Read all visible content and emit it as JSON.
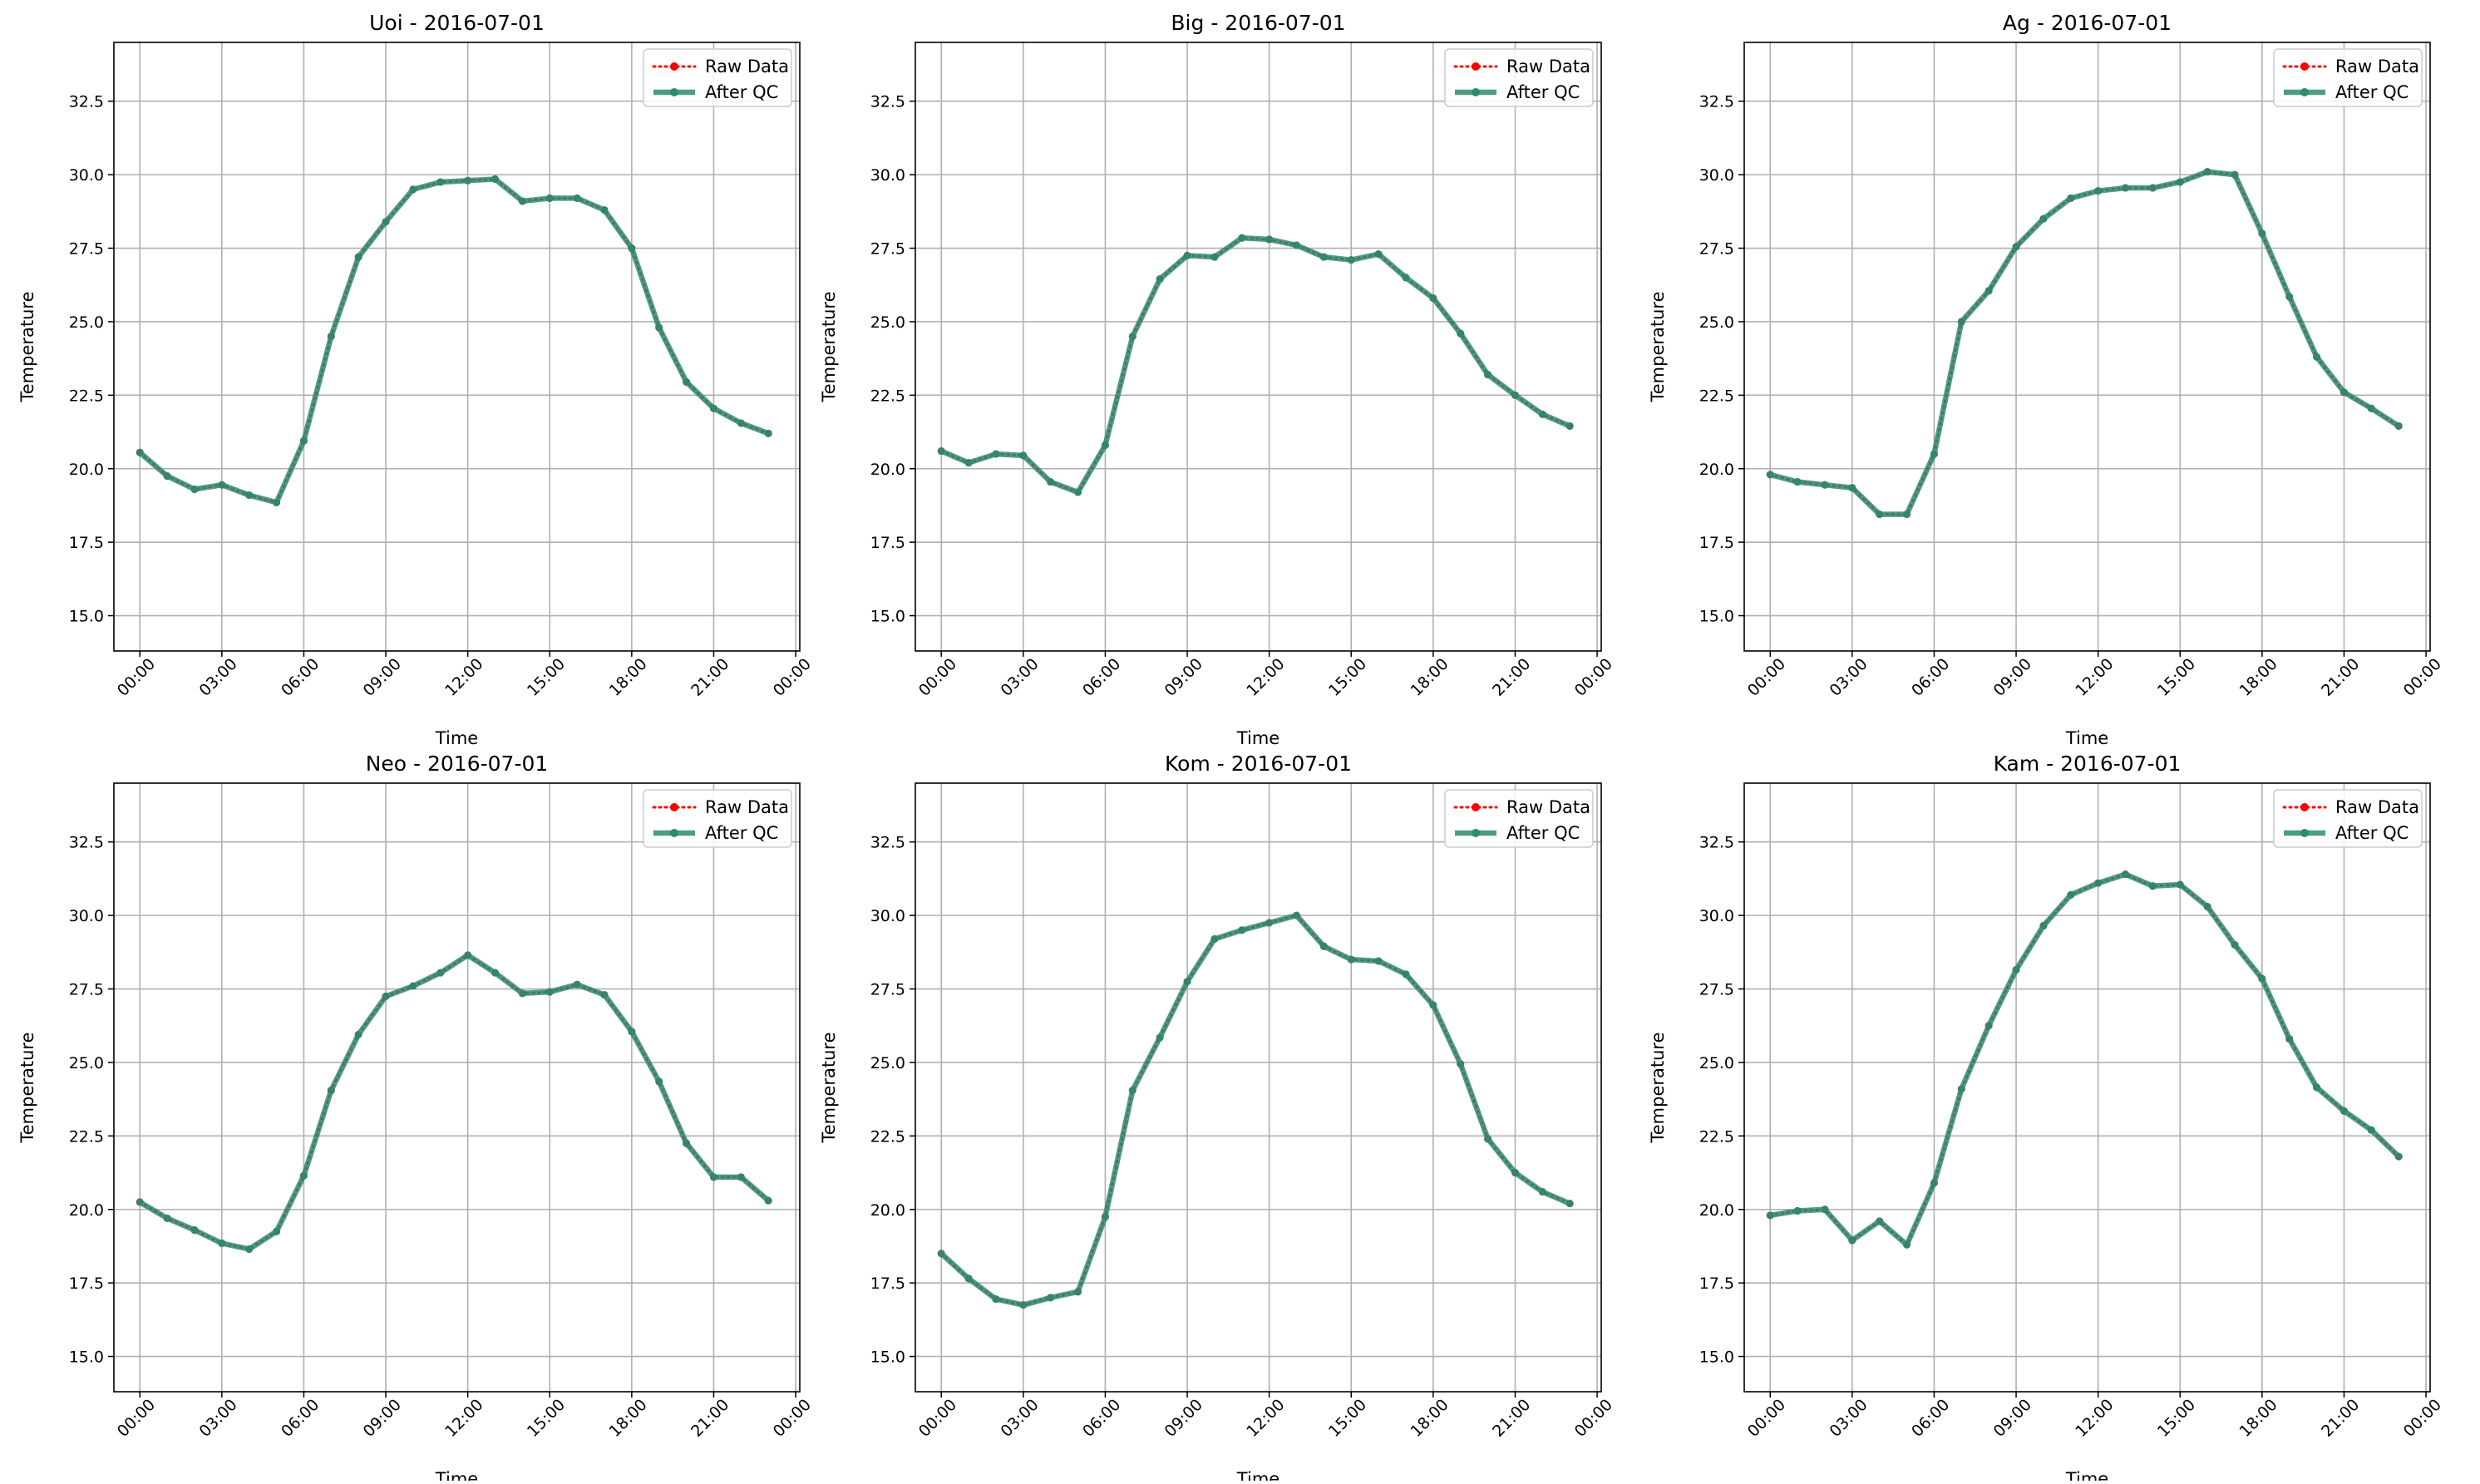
{
  "chart_data": [
    {
      "type": "line",
      "title": "Uoi - 2016-07-01",
      "xlabel": "Time",
      "ylabel": "Temperature",
      "x": [
        "00:00",
        "01:00",
        "02:00",
        "03:00",
        "04:00",
        "05:00",
        "06:00",
        "07:00",
        "08:00",
        "09:00",
        "10:00",
        "11:00",
        "12:00",
        "13:00",
        "14:00",
        "15:00",
        "16:00",
        "17:00",
        "18:00",
        "19:00",
        "20:00",
        "21:00",
        "22:00",
        "23:00"
      ],
      "xticks": [
        "00:00",
        "03:00",
        "06:00",
        "09:00",
        "12:00",
        "15:00",
        "18:00",
        "21:00",
        "00:00"
      ],
      "yticks": [
        "15.0",
        "17.5",
        "20.0",
        "22.5",
        "25.0",
        "27.5",
        "30.0",
        "32.5"
      ],
      "ylim": [
        13.8,
        34.5
      ],
      "xlim_hours": [
        -0.95,
        24.15
      ],
      "grid": true,
      "legend_position": "upper right",
      "series": [
        {
          "name": "Raw Data",
          "color": "#ff0000",
          "style": "dotted",
          "values": [
            20.55,
            19.75,
            19.3,
            19.45,
            19.1,
            18.85,
            20.95,
            24.5,
            27.2,
            28.4,
            29.5,
            29.75,
            29.8,
            29.85,
            29.1,
            29.2,
            29.2,
            28.8,
            27.5,
            24.8,
            22.95,
            22.05,
            21.55,
            21.2
          ]
        },
        {
          "name": "After QC",
          "color": "#2e8b6e",
          "style": "solid",
          "values": [
            20.55,
            19.75,
            19.3,
            19.45,
            19.1,
            18.85,
            20.95,
            24.5,
            27.2,
            28.4,
            29.5,
            29.75,
            29.8,
            29.85,
            29.1,
            29.2,
            29.2,
            28.8,
            27.5,
            24.8,
            22.95,
            22.05,
            21.55,
            21.2
          ]
        }
      ]
    },
    {
      "type": "line",
      "title": "Big - 2016-07-01",
      "xlabel": "Time",
      "ylabel": "Temperature",
      "x": [
        "00:00",
        "01:00",
        "02:00",
        "03:00",
        "04:00",
        "05:00",
        "06:00",
        "07:00",
        "08:00",
        "09:00",
        "10:00",
        "11:00",
        "12:00",
        "13:00",
        "14:00",
        "15:00",
        "16:00",
        "17:00",
        "18:00",
        "19:00",
        "20:00",
        "21:00",
        "22:00",
        "23:00"
      ],
      "xticks": [
        "00:00",
        "03:00",
        "06:00",
        "09:00",
        "12:00",
        "15:00",
        "18:00",
        "21:00",
        "00:00"
      ],
      "yticks": [
        "15.0",
        "17.5",
        "20.0",
        "22.5",
        "25.0",
        "27.5",
        "30.0",
        "32.5"
      ],
      "ylim": [
        13.8,
        34.5
      ],
      "xlim_hours": [
        -0.95,
        24.15
      ],
      "grid": true,
      "legend_position": "upper right",
      "series": [
        {
          "name": "Raw Data",
          "color": "#ff0000",
          "style": "dotted",
          "values": [
            20.6,
            20.2,
            20.5,
            20.45,
            19.55,
            19.2,
            20.8,
            24.5,
            26.45,
            27.25,
            27.2,
            27.85,
            27.8,
            27.6,
            27.2,
            27.1,
            27.3,
            26.5,
            25.8,
            24.6,
            23.2,
            22.5,
            21.85,
            21.45
          ]
        },
        {
          "name": "After QC",
          "color": "#2e8b6e",
          "style": "solid",
          "values": [
            20.6,
            20.2,
            20.5,
            20.45,
            19.55,
            19.2,
            20.8,
            24.5,
            26.45,
            27.25,
            27.2,
            27.85,
            27.8,
            27.6,
            27.2,
            27.1,
            27.3,
            26.5,
            25.8,
            24.6,
            23.2,
            22.5,
            21.85,
            21.45
          ]
        }
      ]
    },
    {
      "type": "line",
      "title": "Ag - 2016-07-01",
      "xlabel": "Time",
      "ylabel": "Temperature",
      "x": [
        "00:00",
        "01:00",
        "02:00",
        "03:00",
        "04:00",
        "05:00",
        "06:00",
        "07:00",
        "08:00",
        "09:00",
        "10:00",
        "11:00",
        "12:00",
        "13:00",
        "14:00",
        "15:00",
        "16:00",
        "17:00",
        "18:00",
        "19:00",
        "20:00",
        "21:00",
        "22:00",
        "23:00"
      ],
      "xticks": [
        "00:00",
        "03:00",
        "06:00",
        "09:00",
        "12:00",
        "15:00",
        "18:00",
        "21:00",
        "00:00"
      ],
      "yticks": [
        "15.0",
        "17.5",
        "20.0",
        "22.5",
        "25.0",
        "27.5",
        "30.0",
        "32.5"
      ],
      "ylim": [
        13.8,
        34.5
      ],
      "xlim_hours": [
        -0.95,
        24.15
      ],
      "grid": true,
      "legend_position": "upper right",
      "series": [
        {
          "name": "Raw Data",
          "color": "#ff0000",
          "style": "dotted",
          "values": [
            19.8,
            19.55,
            19.45,
            19.35,
            18.45,
            18.45,
            20.5,
            25.0,
            26.05,
            27.55,
            28.5,
            29.2,
            29.45,
            29.55,
            29.55,
            29.75,
            30.1,
            30.0,
            28.0,
            25.85,
            23.8,
            22.6,
            22.05,
            21.45
          ]
        },
        {
          "name": "After QC",
          "color": "#2e8b6e",
          "style": "solid",
          "values": [
            19.8,
            19.55,
            19.45,
            19.35,
            18.45,
            18.45,
            20.5,
            25.0,
            26.05,
            27.55,
            28.5,
            29.2,
            29.45,
            29.55,
            29.55,
            29.75,
            30.1,
            30.0,
            28.0,
            25.85,
            23.8,
            22.6,
            22.05,
            21.45
          ]
        }
      ]
    },
    {
      "type": "line",
      "title": "Neo - 2016-07-01",
      "xlabel": "Time",
      "ylabel": "Temperature",
      "x": [
        "00:00",
        "01:00",
        "02:00",
        "03:00",
        "04:00",
        "05:00",
        "06:00",
        "07:00",
        "08:00",
        "09:00",
        "10:00",
        "11:00",
        "12:00",
        "13:00",
        "14:00",
        "15:00",
        "16:00",
        "17:00",
        "18:00",
        "19:00",
        "20:00",
        "21:00",
        "22:00",
        "23:00"
      ],
      "xticks": [
        "00:00",
        "03:00",
        "06:00",
        "09:00",
        "12:00",
        "15:00",
        "18:00",
        "21:00",
        "00:00"
      ],
      "yticks": [
        "15.0",
        "17.5",
        "20.0",
        "22.5",
        "25.0",
        "27.5",
        "30.0",
        "32.5"
      ],
      "ylim": [
        13.8,
        34.5
      ],
      "xlim_hours": [
        -0.95,
        24.15
      ],
      "grid": true,
      "legend_position": "upper right",
      "series": [
        {
          "name": "Raw Data",
          "color": "#ff0000",
          "style": "dotted",
          "values": [
            20.25,
            19.7,
            19.3,
            18.85,
            18.65,
            19.25,
            21.15,
            24.05,
            25.95,
            27.25,
            27.6,
            28.05,
            28.65,
            28.05,
            27.35,
            27.4,
            27.65,
            27.3,
            26.05,
            24.35,
            22.25,
            21.1,
            21.1,
            20.3
          ]
        },
        {
          "name": "After QC",
          "color": "#2e8b6e",
          "style": "solid",
          "values": [
            20.25,
            19.7,
            19.3,
            18.85,
            18.65,
            19.25,
            21.15,
            24.05,
            25.95,
            27.25,
            27.6,
            28.05,
            28.65,
            28.05,
            27.35,
            27.4,
            27.65,
            27.3,
            26.05,
            24.35,
            22.25,
            21.1,
            21.1,
            20.3
          ]
        }
      ]
    },
    {
      "type": "line",
      "title": "Kom - 2016-07-01",
      "xlabel": "Time",
      "ylabel": "Temperature",
      "x": [
        "00:00",
        "01:00",
        "02:00",
        "03:00",
        "04:00",
        "05:00",
        "06:00",
        "07:00",
        "08:00",
        "09:00",
        "10:00",
        "11:00",
        "12:00",
        "13:00",
        "14:00",
        "15:00",
        "16:00",
        "17:00",
        "18:00",
        "19:00",
        "20:00",
        "21:00",
        "22:00",
        "23:00"
      ],
      "xticks": [
        "00:00",
        "03:00",
        "06:00",
        "09:00",
        "12:00",
        "15:00",
        "18:00",
        "21:00",
        "00:00"
      ],
      "yticks": [
        "15.0",
        "17.5",
        "20.0",
        "22.5",
        "25.0",
        "27.5",
        "30.0",
        "32.5"
      ],
      "ylim": [
        13.8,
        34.5
      ],
      "xlim_hours": [
        -0.95,
        24.15
      ],
      "grid": true,
      "legend_position": "upper right",
      "series": [
        {
          "name": "Raw Data",
          "color": "#ff0000",
          "style": "dotted",
          "values": [
            18.5,
            17.65,
            16.95,
            16.75,
            17.0,
            17.2,
            19.75,
            24.05,
            25.85,
            27.75,
            29.2,
            29.5,
            29.75,
            30.0,
            28.95,
            28.5,
            28.45,
            28.0,
            26.95,
            24.95,
            22.4,
            21.25,
            20.6,
            20.2
          ]
        },
        {
          "name": "After QC",
          "color": "#2e8b6e",
          "style": "solid",
          "values": [
            18.5,
            17.65,
            16.95,
            16.75,
            17.0,
            17.2,
            19.75,
            24.05,
            25.85,
            27.75,
            29.2,
            29.5,
            29.75,
            30.0,
            28.95,
            28.5,
            28.45,
            28.0,
            26.95,
            24.95,
            22.4,
            21.25,
            20.6,
            20.2
          ]
        }
      ]
    },
    {
      "type": "line",
      "title": "Kam - 2016-07-01",
      "xlabel": "Time",
      "ylabel": "Temperature",
      "x": [
        "00:00",
        "01:00",
        "02:00",
        "03:00",
        "04:00",
        "05:00",
        "06:00",
        "07:00",
        "08:00",
        "09:00",
        "10:00",
        "11:00",
        "12:00",
        "13:00",
        "14:00",
        "15:00",
        "16:00",
        "17:00",
        "18:00",
        "19:00",
        "20:00",
        "21:00",
        "22:00",
        "23:00"
      ],
      "xticks": [
        "00:00",
        "03:00",
        "06:00",
        "09:00",
        "12:00",
        "15:00",
        "18:00",
        "21:00",
        "00:00"
      ],
      "yticks": [
        "15.0",
        "17.5",
        "20.0",
        "22.5",
        "25.0",
        "27.5",
        "30.0",
        "32.5"
      ],
      "ylim": [
        13.8,
        34.5
      ],
      "xlim_hours": [
        -0.95,
        24.15
      ],
      "grid": true,
      "legend_position": "upper right",
      "series": [
        {
          "name": "Raw Data",
          "color": "#ff0000",
          "style": "dotted",
          "values": [
            19.8,
            19.95,
            20.0,
            18.95,
            19.6,
            18.8,
            20.9,
            24.1,
            26.25,
            28.15,
            29.65,
            30.7,
            31.1,
            31.4,
            31.0,
            31.05,
            30.3,
            29.0,
            27.85,
            25.8,
            24.15,
            23.35,
            22.7,
            21.8
          ]
        },
        {
          "name": "After QC",
          "color": "#2e8b6e",
          "style": "solid",
          "values": [
            19.8,
            19.95,
            20.0,
            18.95,
            19.6,
            18.8,
            20.9,
            24.1,
            26.25,
            28.15,
            29.65,
            30.7,
            31.1,
            31.4,
            31.0,
            31.05,
            30.3,
            29.0,
            27.85,
            25.8,
            24.15,
            23.35,
            22.7,
            21.8
          ]
        }
      ]
    }
  ]
}
